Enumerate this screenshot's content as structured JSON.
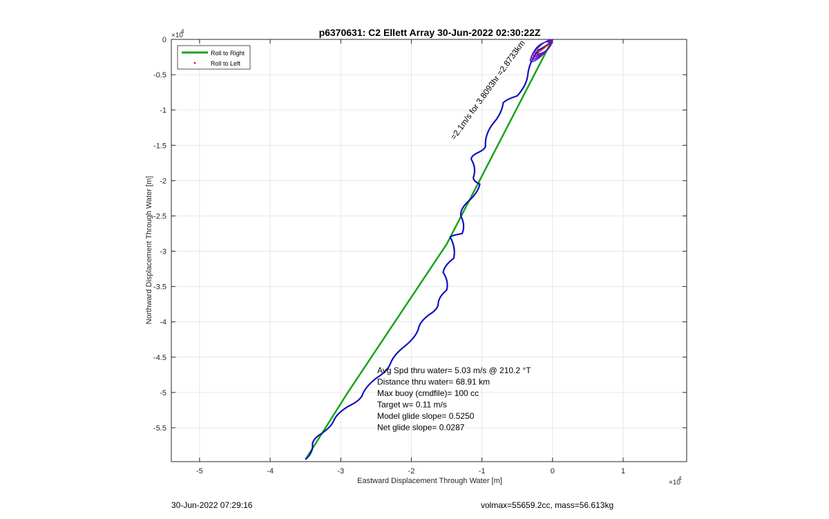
{
  "chart_data": {
    "type": "line",
    "title": "p6370631: C2 Ellett Array 30-Jun-2022 02:30:22Z",
    "xlabel": "Eastward Displacement Through Water [m]",
    "ylabel": "Northward Displacement Through Water [m]",
    "x_exponent_label": "×10",
    "y_exponent_label": "×10",
    "exponent_power": "4",
    "xlim": [
      -5.4,
      1.9
    ],
    "ylim": [
      -5.98,
      0
    ],
    "xticks": [
      -5,
      -4,
      -3,
      -2,
      -1,
      0,
      1
    ],
    "xtick_labels": [
      "-5",
      "-4",
      "-3",
      "-2",
      "-1",
      "0",
      "1"
    ],
    "yticks": [
      0,
      -0.5,
      -1,
      -1.5,
      -2,
      -2.5,
      -3,
      -3.5,
      -4,
      -4.5,
      -5,
      -5.5
    ],
    "ytick_labels": [
      "0",
      "-0.5",
      "-1",
      "-1.5",
      "-2",
      "-2.5",
      "-3",
      "-3.5",
      "-4",
      "-4.5",
      "-5",
      "-5.5"
    ],
    "grid": true,
    "legend": {
      "placement": "top-left",
      "entries": [
        {
          "name": "Roll to Right",
          "color": "#1aa31a",
          "style": "line"
        },
        {
          "name": "Roll to Left",
          "color": "#cc0000",
          "style": "dot"
        }
      ]
    },
    "series": [
      {
        "name": "Roll to Right",
        "color": "#1aa31a",
        "x": [
          0,
          -1.5,
          -2.9,
          -3.5
        ],
        "y": [
          0,
          -2.9,
          -5.0,
          -5.95
        ]
      },
      {
        "name": "track",
        "color": "#1010c0",
        "x": [
          0,
          -0.2,
          -0.35,
          -0.5,
          -0.7,
          -0.85,
          -0.95,
          -1.05,
          -1.15,
          -1.12,
          -1.03,
          -1.2,
          -1.3,
          -1.28,
          -1.45,
          -1.4,
          -1.55,
          -1.5,
          -1.62,
          -1.75,
          -1.9,
          -2.1,
          -2.3,
          -2.5,
          -2.7,
          -2.9,
          -3.1,
          -3.3,
          -3.4,
          -3.5
        ],
        "y": [
          0,
          -0.15,
          -0.5,
          -0.8,
          -0.9,
          -1.2,
          -1.5,
          -1.6,
          -1.7,
          -1.95,
          -2.05,
          -2.3,
          -2.5,
          -2.75,
          -2.8,
          -3.1,
          -3.3,
          -3.55,
          -3.75,
          -3.9,
          -4.1,
          -4.35,
          -4.6,
          -4.8,
          -5.05,
          -5.2,
          -5.4,
          -5.6,
          -5.75,
          -5.95
        ]
      }
    ],
    "annotation": "=2.1m/s for 3.8093hr =2.8733km",
    "stats_text": [
      "Avg Spd thru water=  5.03 m/s @ 210.2 °T",
      "Distance thru water= 68.91 km",
      "Max buoy (cmdfile)= 100 cc",
      "Target w= 0.11 m/s",
      "Model glide slope= 0.5250",
      "Net glide slope= 0.0287"
    ]
  },
  "footer": {
    "left": "30-Jun-2022 07:29:16",
    "right": "volmax=55659.2cc, mass=56.613kg"
  }
}
